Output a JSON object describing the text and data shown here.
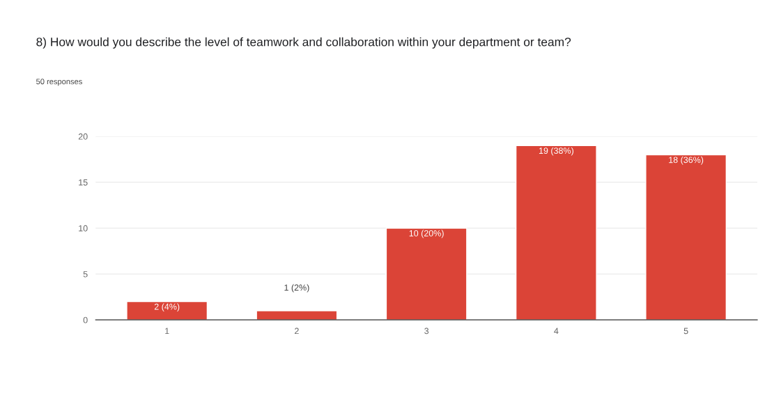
{
  "chart_data": {
    "type": "bar",
    "title": "8) How would you describe the level of teamwork and collaboration within your department or team?",
    "subtitle": "50 responses",
    "categories": [
      "1",
      "2",
      "3",
      "4",
      "5"
    ],
    "values": [
      2,
      1,
      10,
      19,
      18
    ],
    "value_labels": [
      "2 (4%)",
      "1 (2%)",
      "10 (20%)",
      "19 (38%)",
      "18 (36%)"
    ],
    "color": "#db4437",
    "ylim": [
      0,
      20
    ],
    "yticks": [
      0,
      5,
      10,
      15,
      20
    ],
    "grid": "y",
    "legend": false
  }
}
